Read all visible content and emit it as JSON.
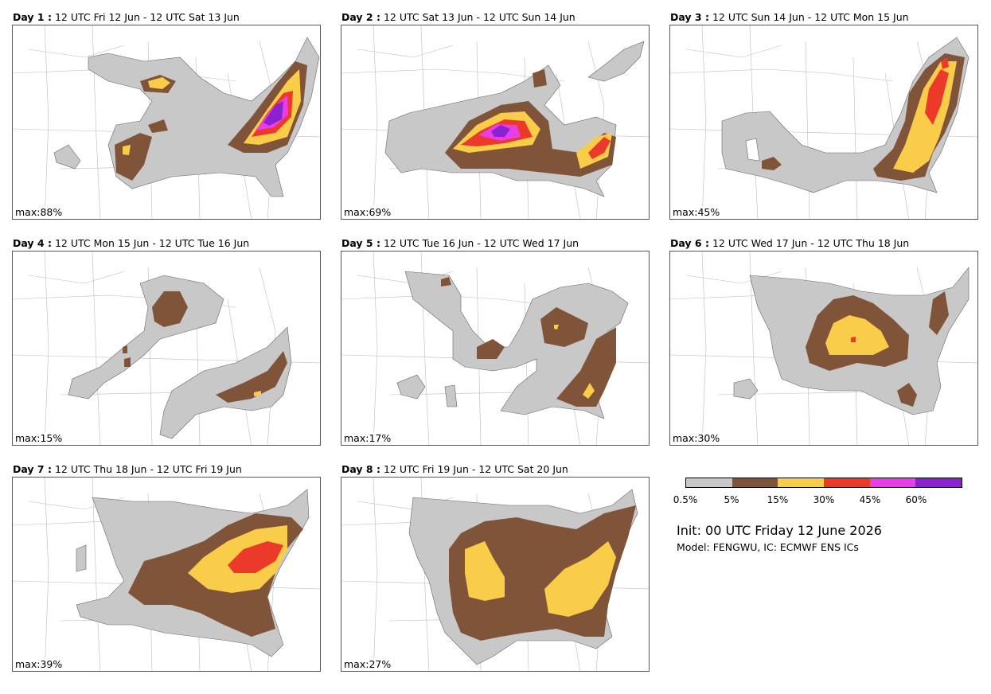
{
  "panels": [
    {
      "day": "Day 1 :",
      "period": "12 UTC Fri 12 Jun - 12 UTC Sat 13 Jun",
      "max": "max:88%"
    },
    {
      "day": "Day 2 :",
      "period": "12 UTC Sat 13 Jun - 12 UTC Sun 14 Jun",
      "max": "max:69%"
    },
    {
      "day": "Day 3 :",
      "period": "12 UTC Sun 14 Jun - 12 UTC Mon 15 Jun",
      "max": "max:45%"
    },
    {
      "day": "Day 4 :",
      "period": "12 UTC Mon 15 Jun - 12 UTC Tue 16 Jun",
      "max": "max:15%"
    },
    {
      "day": "Day 5 :",
      "period": "12 UTC Tue 16 Jun - 12 UTC Wed 17 Jun",
      "max": "max:17%"
    },
    {
      "day": "Day 6 :",
      "period": "12 UTC Wed 17 Jun - 12 UTC Thu 18 Jun",
      "max": "max:30%"
    },
    {
      "day": "Day 7 :",
      "period": "12 UTC Thu 18 Jun - 12 UTC Fri 19 Jun",
      "max": "max:39%"
    },
    {
      "day": "Day 8 :",
      "period": "12 UTC Fri 19 Jun - 12 UTC Sat 20 Jun",
      "max": "max:27%"
    }
  ],
  "colorbar": {
    "colors": [
      "#c8c8c8",
      "#7f5439",
      "#f9cc4a",
      "#eb3a2a",
      "#e83ee8",
      "#8a22d0"
    ],
    "ticks": [
      "0.5%",
      "5%",
      "15%",
      "30%",
      "45%",
      "60%"
    ]
  },
  "init_text": "Init: 00 UTC Friday 12 June 2026",
  "model_text": "Model: FENGWU, IC: ECMWF ENS ICs"
}
